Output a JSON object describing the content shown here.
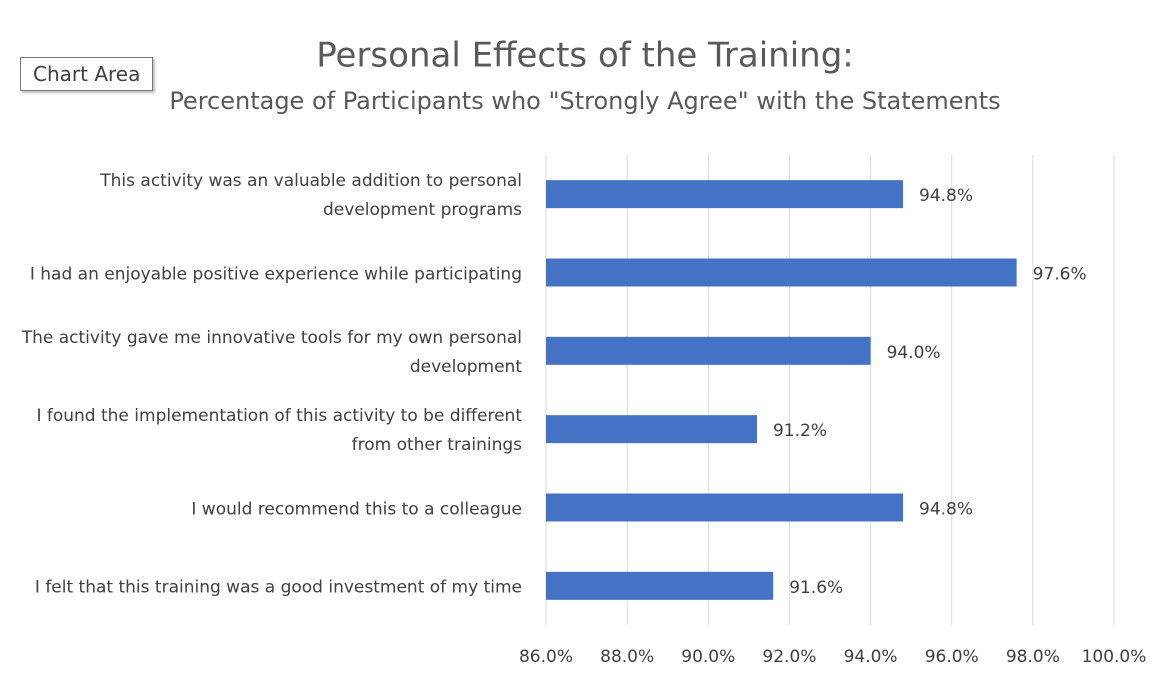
{
  "chart_data": {
    "type": "bar",
    "orientation": "horizontal",
    "title": "Personal Effects of the Training:",
    "subtitle": "Percentage of Participants who \"Strongly Agree\" with the Statements",
    "tooltip": "Chart Area",
    "categories": [
      "This activity was an valuable addition to personal development programs",
      "I had an enjoyable positive experience while participating",
      "The activity gave me innovative tools for my own personal development",
      "I found the implementation of this activity to be different from other trainings",
      "I would recommend this to a colleague",
      "I felt that this training was a good investment of my time"
    ],
    "values": [
      94.8,
      97.6,
      94.0,
      91.2,
      94.8,
      91.6
    ],
    "value_labels": [
      "94.8%",
      "97.6%",
      "94.0%",
      "91.2%",
      "94.8%",
      "91.6%"
    ],
    "color": "#4472c4",
    "xlim": [
      86,
      100
    ],
    "xticks": [
      {
        "value": 86,
        "label": "86.0%"
      },
      {
        "value": 88,
        "label": "88.0%"
      },
      {
        "value": 90,
        "label": "90.0%"
      },
      {
        "value": 92,
        "label": "92.0%"
      },
      {
        "value": 94,
        "label": "94.0%"
      },
      {
        "value": 96,
        "label": "96.0%"
      },
      {
        "value": 98,
        "label": "98.0%"
      },
      {
        "value": 100,
        "label": "100.0%"
      }
    ],
    "grid": true
  }
}
